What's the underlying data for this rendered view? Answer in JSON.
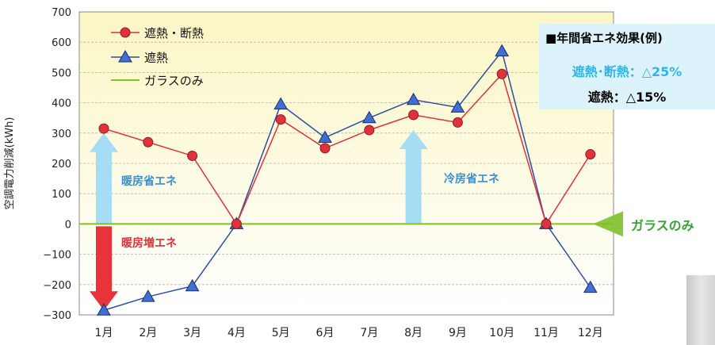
{
  "chart_data": {
    "type": "line",
    "ylabel": "空調電力削減(kWh)",
    "ylim": [
      -300,
      700
    ],
    "yticks": [
      700,
      600,
      500,
      400,
      300,
      200,
      100,
      0,
      -100,
      -200,
      -300
    ],
    "categories": [
      "1月",
      "2月",
      "3月",
      "4月",
      "5月",
      "6月",
      "7月",
      "8月",
      "9月",
      "10月",
      "11月",
      "12月"
    ],
    "grid": true,
    "legend_position": "top-left",
    "series": [
      {
        "name": "遮熱・断熱",
        "marker": "circle",
        "color": "#e0323b",
        "values": [
          315,
          270,
          225,
          0,
          345,
          250,
          310,
          360,
          335,
          495,
          0,
          230
        ]
      },
      {
        "name": "遮熱",
        "marker": "triangle",
        "color": "#2d4fa3",
        "values": [
          -285,
          -240,
          -205,
          0,
          395,
          285,
          350,
          410,
          385,
          570,
          0,
          -210
        ]
      },
      {
        "name": "ガラスのみ",
        "marker": "none",
        "color": "#7fc31c",
        "values": [
          0,
          0,
          0,
          0,
          0,
          0,
          0,
          0,
          0,
          0,
          0,
          0
        ]
      }
    ],
    "annotations": {
      "heating_saving": "暖房省エネ",
      "heating_increase": "暖房増エネ",
      "cooling_saving": "冷房省エネ",
      "glass_only_marker": "ガラスのみ"
    }
  },
  "effect_box": {
    "title": "■年間省エネ効果(例)",
    "line1": "遮熱･断熱：△25%",
    "line2": "遮熱：△15%"
  },
  "colors": {
    "heating_saving_arrow": "#a6dcf4",
    "heating_increase_arrow": "#e8333a",
    "cooling_saving_arrow": "#a6dcf4",
    "glass_only_arrow": "#8cc63f",
    "plot_gradient_top": "#fbf6c4",
    "plot_gradient_bottom": "#ffffff"
  }
}
